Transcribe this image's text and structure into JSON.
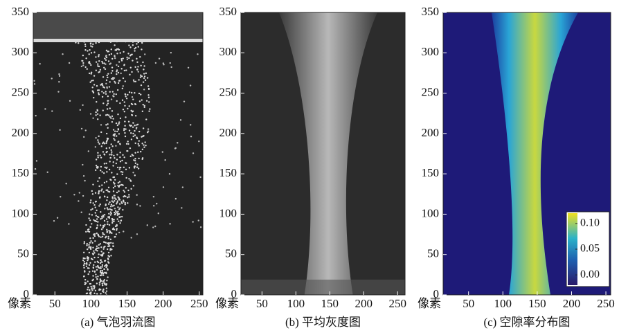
{
  "chart_data": [
    {
      "type": "image",
      "caption": "(a) 气泡羽流图",
      "xlabel": "像素",
      "xlim": [
        20,
        255
      ],
      "xticks": [
        50,
        100,
        150,
        200,
        250
      ],
      "ylim": [
        0,
        350
      ],
      "yticks": [
        0,
        50,
        100,
        150,
        200,
        250,
        300,
        350
      ]
    },
    {
      "type": "image",
      "caption": "(b) 平均灰度图",
      "xlabel": "像素",
      "xlim": [
        19,
        261
      ],
      "xticks": [
        50,
        100,
        150,
        200,
        250
      ],
      "ylim": [
        0,
        350
      ],
      "yticks": [
        0,
        50,
        100,
        150,
        200,
        250,
        300,
        350
      ]
    },
    {
      "type": "heatmap",
      "caption": "(c) 空隙率分布图",
      "xlabel": "像素",
      "xlim": [
        13,
        257
      ],
      "xticks": [
        50,
        100,
        150,
        200,
        250
      ],
      "ylim": [
        0,
        350
      ],
      "yticks": [
        0,
        50,
        100,
        150,
        200,
        250,
        300,
        350
      ],
      "clim": [
        -0.02,
        0.12
      ],
      "cticks": [
        {
          "value": 0,
          "label": "0.00"
        },
        {
          "value": 0.05,
          "label": "0.05"
        },
        {
          "value": 0.1,
          "label": "0.10"
        }
      ]
    }
  ]
}
